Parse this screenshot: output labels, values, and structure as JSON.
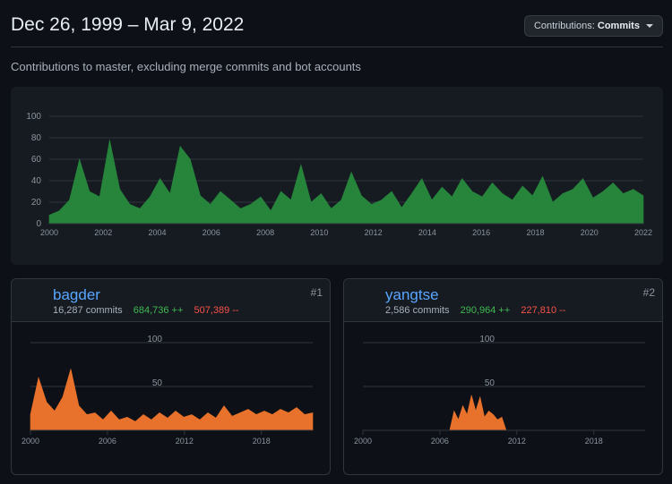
{
  "header": {
    "date_range": "Dec 26, 1999 – Mar 9, 2022",
    "contributions_label": "Contributions:",
    "contributions_value": "Commits"
  },
  "subtitle": "Contributions to master, excluding merge commits and bot accounts",
  "colors": {
    "main_series": "#26843b",
    "user_series": "#e8722b",
    "grid": "#30363d",
    "axis_text": "#8b949e"
  },
  "chart_data": [
    {
      "type": "area",
      "title": "",
      "x_ticks": [
        "2000",
        "2002",
        "2004",
        "2006",
        "2008",
        "2010",
        "2012",
        "2014",
        "2016",
        "2018",
        "2020",
        "2022"
      ],
      "y_ticks": [
        "0",
        "20",
        "40",
        "60",
        "80",
        "100"
      ],
      "xlim": [
        2000,
        2022
      ],
      "ylim": [
        0,
        100
      ],
      "grid": true,
      "series": [
        {
          "values": [
            8,
            12,
            22,
            60,
            30,
            25,
            78,
            32,
            18,
            14,
            25,
            42,
            28,
            72,
            60,
            26,
            18,
            30,
            22,
            14,
            18,
            25,
            12,
            30,
            22,
            55,
            20,
            28,
            14,
            22,
            48,
            26,
            18,
            22,
            30,
            15,
            28,
            42,
            22,
            34,
            25,
            42,
            30,
            25,
            38,
            28,
            22,
            35,
            26,
            44,
            20,
            28,
            32,
            42,
            24,
            30,
            38,
            28,
            32,
            26
          ]
        }
      ]
    },
    {
      "type": "area",
      "x_ticks": [
        "2000",
        "2006",
        "2012",
        "2018"
      ],
      "y_ticks": [
        "50",
        "100"
      ],
      "xlim": [
        2000,
        2022
      ],
      "ylim": [
        0,
        100
      ],
      "grid": true,
      "series": [
        {
          "values": [
            18,
            60,
            32,
            22,
            38,
            70,
            28,
            18,
            20,
            12,
            22,
            12,
            15,
            10,
            18,
            12,
            20,
            14,
            22,
            15,
            18,
            12,
            20,
            14,
            28,
            16,
            20,
            24,
            18,
            22,
            18,
            24,
            20,
            26,
            18,
            20
          ]
        }
      ]
    },
    {
      "type": "area",
      "x_ticks": [
        "2000",
        "2006",
        "2012",
        "2018"
      ],
      "y_ticks": [
        "50",
        "100"
      ],
      "xlim": [
        2000,
        2022
      ],
      "ylim": [
        0,
        100
      ],
      "grid": true,
      "series": [
        {
          "values": [
            0,
            0,
            0,
            0,
            0,
            0,
            0,
            0,
            0,
            0,
            0,
            0,
            0,
            0,
            0,
            0,
            0,
            0,
            0,
            0,
            0,
            22,
            12,
            28,
            18,
            40,
            22,
            38,
            15,
            22,
            18,
            12,
            15,
            0,
            0,
            0,
            0,
            0,
            0,
            0,
            0,
            0,
            0,
            0,
            0,
            0,
            0,
            0,
            0,
            0,
            0,
            0,
            0,
            0,
            0,
            0,
            0,
            0,
            0,
            0,
            0,
            0,
            0,
            0,
            0,
            0
          ]
        }
      ]
    }
  ],
  "contributors": [
    {
      "username": "bagder",
      "commits": "16,287 commits",
      "additions": "684,736 ++",
      "deletions": "507,389 --",
      "rank": "#1"
    },
    {
      "username": "yangtse",
      "commits": "2,586 commits",
      "additions": "290,964 ++",
      "deletions": "227,810 --",
      "rank": "#2"
    }
  ]
}
